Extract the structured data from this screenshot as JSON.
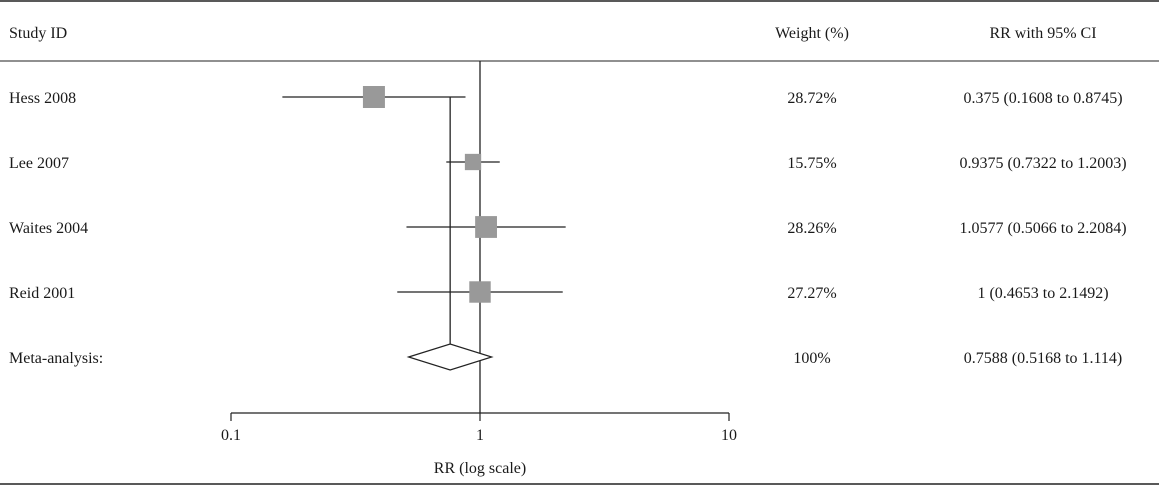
{
  "chart_data": {
    "type": "forest",
    "header": {
      "study": "Study ID",
      "weight": "Weight (%)",
      "effect": "RR with 95% CI"
    },
    "xlabel": "RR (log scale)",
    "x_scale": "log",
    "xlim": [
      0.1,
      10
    ],
    "x_ticks": [
      0.1,
      1,
      10
    ],
    "x_tick_labels": [
      "0.1",
      "1",
      "10"
    ],
    "reference_line": 1,
    "box_color": "#999999",
    "studies": [
      {
        "label": "Hess 2008",
        "rr": 0.375,
        "lower": 0.1608,
        "upper": 0.8745,
        "weight": 28.72,
        "weight_text": "28.72%",
        "ci_text": "0.375 (0.1608 to 0.8745)"
      },
      {
        "label": "Lee 2007",
        "rr": 0.9375,
        "lower": 0.7322,
        "upper": 1.2003,
        "weight": 15.75,
        "weight_text": "15.75%",
        "ci_text": "0.9375 (0.7322 to 1.2003)"
      },
      {
        "label": "Waites 2004",
        "rr": 1.0577,
        "lower": 0.5066,
        "upper": 2.2084,
        "weight": 28.26,
        "weight_text": "28.26%",
        "ci_text": "1.0577 (0.5066 to 2.2084)"
      },
      {
        "label": "Reid 2001",
        "rr": 1,
        "lower": 0.4653,
        "upper": 2.1492,
        "weight": 27.27,
        "weight_text": "27.27%",
        "ci_text": "1 (0.4653 to 2.1492)"
      }
    ],
    "pooled": {
      "label": "Meta-analysis:",
      "rr": 0.7588,
      "lower": 0.5168,
      "upper": 1.114,
      "weight_text": "100%",
      "ci_text": "0.7588 (0.5168 to 1.114)"
    }
  }
}
